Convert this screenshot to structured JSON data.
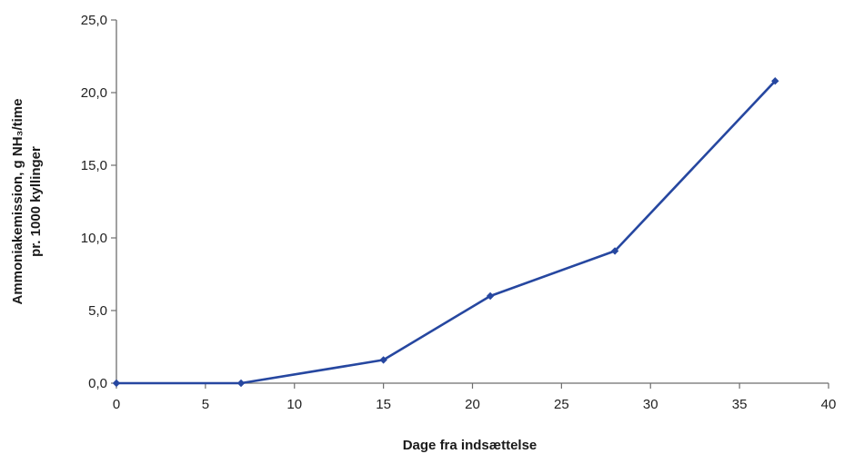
{
  "chart_data": {
    "type": "line",
    "title": "",
    "xlabel": "Dage fra indsættelse",
    "ylabel_line1": "Ammoniakemission, g NH₃/time",
    "ylabel_line2": "pr. 1000 kyllinger",
    "xlim": [
      0,
      40
    ],
    "ylim": [
      0,
      25
    ],
    "x_ticks": [
      "0",
      "5",
      "10",
      "15",
      "20",
      "25",
      "30",
      "35",
      "40"
    ],
    "y_ticks": [
      "0,0",
      "5,0",
      "10,0",
      "15,0",
      "20,0",
      "25,0"
    ],
    "grid": false,
    "legend": "none",
    "series": [
      {
        "color": "#2647a0",
        "x": [
          0,
          7,
          15,
          21,
          28,
          37
        ],
        "y": [
          0.0,
          0.0,
          1.6,
          6.0,
          9.1,
          20.8
        ]
      }
    ]
  }
}
